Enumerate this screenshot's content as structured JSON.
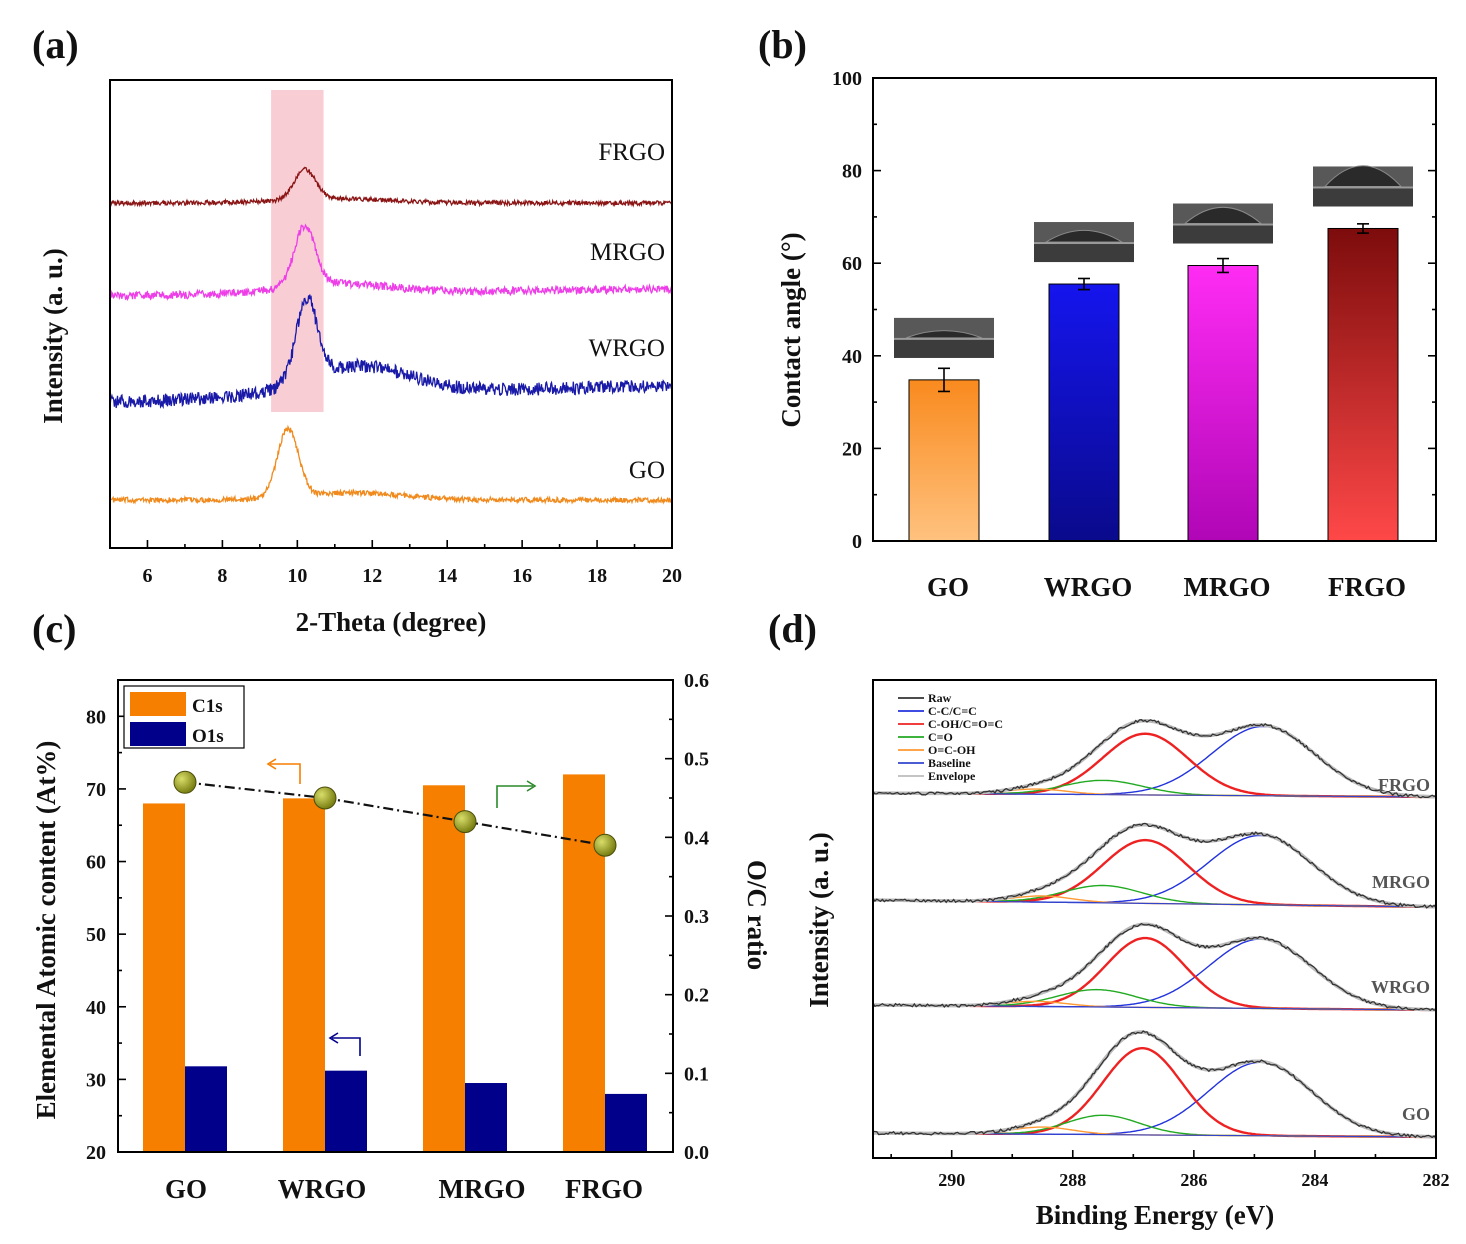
{
  "colors": {
    "GO": "#f08a1c",
    "WRGO": "#1a1aa8",
    "MRGO": "#ee3ee8",
    "FRGO": "#8b1515",
    "highlight": "#f8cdd4",
    "c1s": "#f77f00",
    "o1s": "#00008b",
    "ratio_marker": "#7a7f12"
  },
  "chart_data": [
    {
      "id": "a",
      "type": "line",
      "panel_label": "(a)",
      "xlabel": "2-Theta (degree)",
      "ylabel": "Intensity (a. u.)",
      "xlim": [
        5,
        20
      ],
      "xticks": [
        6,
        8,
        10,
        12,
        14,
        16,
        18,
        20
      ],
      "highlight_band": [
        9.3,
        10.7
      ],
      "series": [
        {
          "name": "GO",
          "peak": 9.75,
          "peak_height": 0.78,
          "broad_center": 11.5,
          "broad_height": 0.08,
          "noise": 0.03
        },
        {
          "name": "WRGO",
          "peak": 10.25,
          "peak_height": 0.85,
          "broad_center": 11.6,
          "broad_height": 0.3,
          "noise": 0.07
        },
        {
          "name": "MRGO",
          "peak": 10.2,
          "peak_height": 0.75,
          "broad_center": 11.0,
          "broad_height": 0.12,
          "noise": 0.05
        },
        {
          "name": "FRGO",
          "peak": 10.2,
          "peak_height": 0.55,
          "broad_center": 11.0,
          "broad_height": 0.08,
          "noise": 0.04
        }
      ]
    },
    {
      "id": "b",
      "type": "bar",
      "panel_label": "(b)",
      "ylabel": "Contact angle (°)",
      "ylim": [
        0,
        100
      ],
      "yticks": [
        0,
        20,
        40,
        60,
        80,
        100
      ],
      "categories": [
        "GO",
        "WRGO",
        "MRGO",
        "FRGO"
      ],
      "values": [
        34.8,
        55.5,
        59.5,
        67.5
      ],
      "errors": [
        2.5,
        1.2,
        1.5,
        1.0
      ]
    },
    {
      "id": "c",
      "type": "bar",
      "panel_label": "(c)",
      "ylabel": "Elemental Atomic content (At%)",
      "ylabel_right": "O/C ratio",
      "ylim": [
        20,
        85
      ],
      "yticks": [
        20,
        30,
        40,
        50,
        60,
        70,
        80
      ],
      "ylim_right": [
        0,
        0.6
      ],
      "yticks_right": [
        "0.0",
        "0.1",
        "0.2",
        "0.3",
        "0.4",
        "0.5",
        "0.6"
      ],
      "categories": [
        "GO",
        "WRGO",
        "MRGO",
        "FRGO"
      ],
      "series": [
        {
          "name": "C1s",
          "values": [
            68.0,
            68.7,
            70.5,
            72.0
          ]
        },
        {
          "name": "O1s",
          "values": [
            31.8,
            31.2,
            29.5,
            28.0
          ]
        }
      ],
      "ratio": {
        "name": "O/C ratio",
        "values": [
          0.47,
          0.45,
          0.42,
          0.39
        ]
      }
    },
    {
      "id": "d",
      "type": "line",
      "panel_label": "(d)",
      "xlabel": "Binding Energy (eV)",
      "ylabel": "Intensity (a. u.)",
      "xlim": [
        291.3,
        282
      ],
      "xticks": [
        290,
        288,
        286,
        284,
        282
      ],
      "legend": [
        {
          "name": "Raw",
          "color": "#333333"
        },
        {
          "name": "C-C/C=C",
          "color": "#2233dd"
        },
        {
          "name": "C-OH/C=O=C",
          "color": "#ee2222"
        },
        {
          "name": "C=O",
          "color": "#22aa22"
        },
        {
          "name": "O=C-OH",
          "color": "#ff9933"
        },
        {
          "name": "Baseline",
          "color": "#3344cc"
        },
        {
          "name": "Envelope",
          "color": "#bbbbbb"
        }
      ],
      "samples": [
        {
          "name": "FRGO",
          "components": [
            [
              284.85,
              0.85,
              0.68
            ],
            [
              286.8,
              0.7,
              0.6
            ],
            [
              287.5,
              0.65,
              0.14
            ],
            [
              288.6,
              0.5,
              0.05
            ]
          ]
        },
        {
          "name": "MRGO",
          "components": [
            [
              284.9,
              0.85,
              0.68
            ],
            [
              286.8,
              0.7,
              0.62
            ],
            [
              287.5,
              0.65,
              0.17
            ],
            [
              288.5,
              0.5,
              0.06
            ]
          ]
        },
        {
          "name": "WRGO",
          "components": [
            [
              284.9,
              0.85,
              0.68
            ],
            [
              286.8,
              0.65,
              0.68
            ],
            [
              287.6,
              0.65,
              0.17
            ],
            [
              288.6,
              0.5,
              0.05
            ]
          ]
        },
        {
          "name": "GO",
          "components": [
            [
              284.9,
              0.85,
              0.72
            ],
            [
              286.85,
              0.65,
              0.85
            ],
            [
              287.5,
              0.6,
              0.19
            ],
            [
              288.5,
              0.5,
              0.07
            ]
          ]
        }
      ]
    }
  ]
}
